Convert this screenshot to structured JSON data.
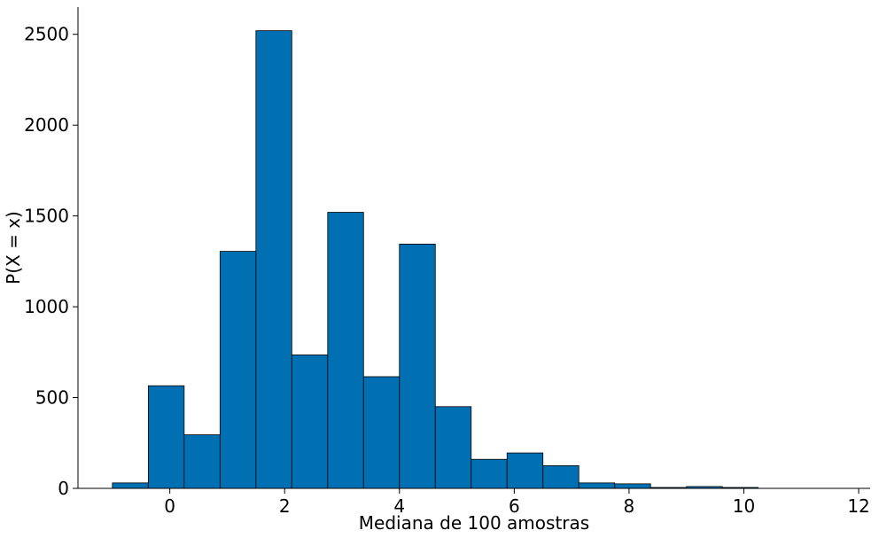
{
  "chart_data": {
    "type": "bar",
    "title": "",
    "xlabel": "Mediana de 100 amostras",
    "ylabel": "P(X = x)",
    "xlim": [
      -1.6,
      12.2
    ],
    "ylim": [
      0,
      2650
    ],
    "x_ticks": [
      0,
      2,
      4,
      6,
      8,
      10,
      12
    ],
    "y_ticks": [
      0,
      500,
      1000,
      1500,
      2000,
      2500
    ],
    "grid": false,
    "legend": "none",
    "bar_color": "#0070b3",
    "edge_color": "#000000",
    "bin_edges": [
      -1.0,
      -0.375,
      0.25,
      0.875,
      1.5,
      2.125,
      2.75,
      3.375,
      4.0,
      4.625,
      5.25,
      5.875,
      6.5,
      7.125,
      7.75,
      8.375,
      9.0,
      9.625,
      10.25
    ],
    "values": [
      30,
      565,
      295,
      1305,
      2520,
      735,
      1520,
      615,
      1345,
      450,
      160,
      195,
      125,
      30,
      25,
      5,
      10,
      5
    ]
  }
}
